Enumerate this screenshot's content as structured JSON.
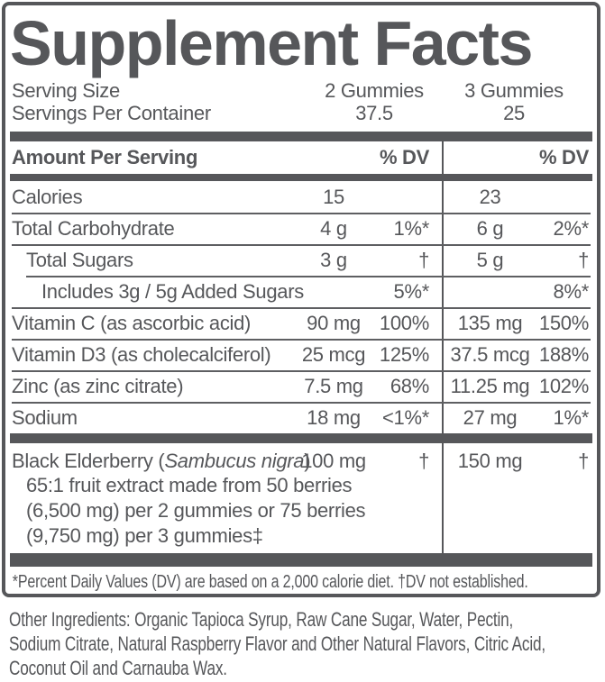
{
  "title": "Supplement Facts",
  "serving": {
    "size_label": "Serving Size",
    "container_label": "Servings Per Container",
    "col1": {
      "size": "2 Gummies",
      "servings": "37.5"
    },
    "col2": {
      "size": "3 Gummies",
      "servings": "25"
    }
  },
  "header": {
    "amount_label": "Amount Per Serving",
    "dv_label_1": "% DV",
    "dv_label_2": "% DV"
  },
  "rows": [
    {
      "name": "Calories",
      "amt1": "15",
      "dv1": "",
      "amt2": "23",
      "dv2": ""
    },
    {
      "name": "Total Carbohydrate",
      "amt1": "4 g",
      "dv1": "1%*",
      "amt2": "6 g",
      "dv2": "2%*"
    },
    {
      "name": "Total Sugars",
      "amt1": "3 g",
      "dv1": "†",
      "amt2": "5 g",
      "dv2": "†"
    },
    {
      "name": "Includes 3g / 5g Added Sugars",
      "amt1": "",
      "dv1": "5%*",
      "amt2": "",
      "dv2": "8%*"
    },
    {
      "name": "Vitamin C (as ascorbic acid)",
      "amt1": "90 mg",
      "dv1": "100%",
      "amt2": "135 mg",
      "dv2": "150%"
    },
    {
      "name": "Vitamin D3 (as cholecalciferol)",
      "amt1": "25 mcg",
      "dv1": "125%",
      "amt2": "37.5 mcg",
      "dv2": "188%"
    },
    {
      "name": "Zinc (as zinc citrate)",
      "amt1": "7.5 mg",
      "dv1": "68%",
      "amt2": "11.25 mg",
      "dv2": "102%"
    },
    {
      "name": "Sodium",
      "amt1": "18 mg",
      "dv1": "<1%*",
      "amt2": "27 mg",
      "dv2": "1%*"
    }
  ],
  "elderberry": {
    "prefix": "Black Elderberry (",
    "latin": "Sambucus nigra",
    "suffix": ")",
    "amt1": "100 mg",
    "dv1": "†",
    "amt2": "150 mg",
    "dv2": "†",
    "lines": [
      "65:1 fruit extract made from 50 berries",
      "(6,500 mg) per 2 gummies or 75 berries",
      "(9,750 mg) per 3 gummies‡"
    ]
  },
  "footnote": "*Percent Daily Values (DV) are based on a 2,000 calorie diet. †DV not established.",
  "other_ingredients": {
    "lines": [
      "Other Ingredients: Organic Tapioca Syrup, Raw Cane Sugar, Water, Pectin,",
      "Sodium Citrate, Natural Raspberry Flavor and Other Natural Flavors, Citric Acid,",
      "Coconut Oil and Carnauba Wax."
    ]
  },
  "colors": {
    "text": "#56575a",
    "bars": "#56575a",
    "background": "#ffffff"
  }
}
